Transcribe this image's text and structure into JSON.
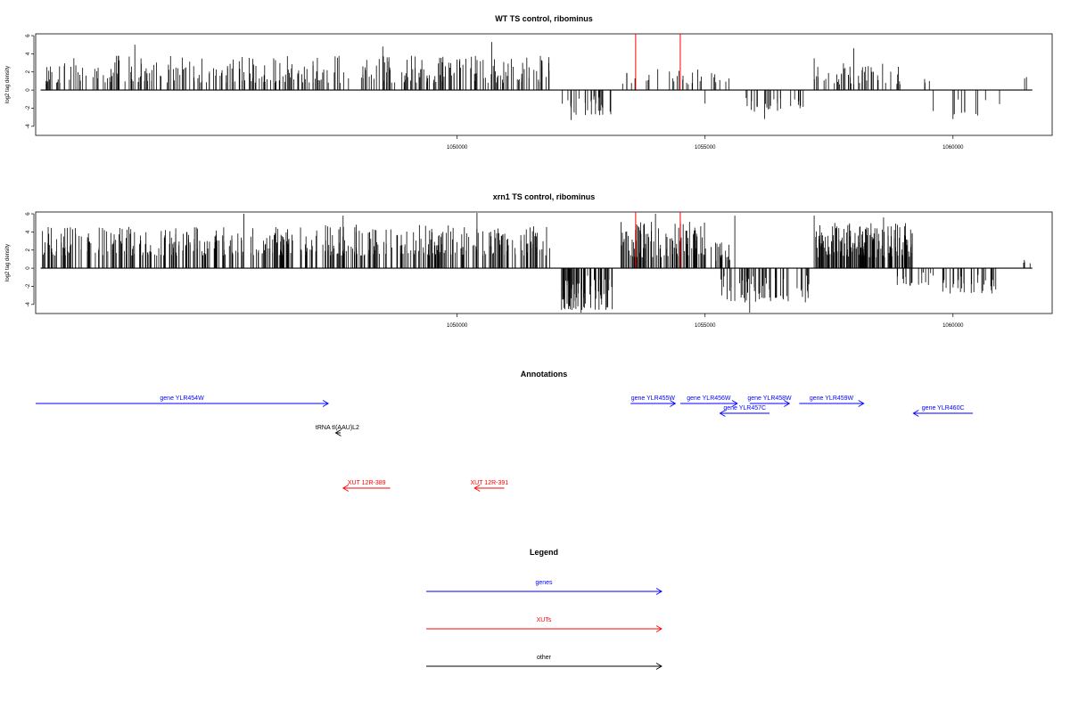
{
  "chart_data": [
    {
      "type": "bar",
      "title": "WT TS control, ribominus",
      "ylabel": "log2 tag density",
      "xlim": [
        1041500,
        1062000
      ],
      "ylim": [
        -5,
        6.2
      ],
      "xticks": [
        1050000,
        1055000,
        1060000
      ],
      "yticks": [
        -4,
        -2,
        0,
        2,
        4,
        6
      ],
      "ytick_labels": [
        "-4",
        "-2",
        "0",
        "2",
        "4",
        "6"
      ],
      "highlight_color": "#ff0000",
      "bar_color": "#000000",
      "seed": 11,
      "segments": [
        {
          "x0": 1041600,
          "x1": 1047200,
          "n": 160,
          "min": 0.8,
          "max": 3.8,
          "neg": false
        },
        {
          "x0": 1047200,
          "x1": 1051900,
          "n": 140,
          "min": 0.8,
          "max": 3.8,
          "neg": false
        },
        {
          "x0": 1052100,
          "x1": 1053100,
          "n": 30,
          "min": -2.8,
          "max": -0.6,
          "neg": true
        },
        {
          "x0": 1053300,
          "x1": 1054900,
          "n": 22,
          "min": 0.6,
          "max": 2.5,
          "neg": false
        },
        {
          "x0": 1054900,
          "x1": 1055500,
          "n": 8,
          "min": 0.8,
          "max": 2.0,
          "neg": false
        },
        {
          "x0": 1055700,
          "x1": 1057100,
          "n": 26,
          "min": -2.5,
          "max": -0.6,
          "neg": true
        },
        {
          "x0": 1057200,
          "x1": 1059000,
          "n": 45,
          "min": 0.6,
          "max": 3.0,
          "neg": false
        },
        {
          "x0": 1059400,
          "x1": 1059600,
          "n": 3,
          "min": 0.8,
          "max": 2.2,
          "neg": false
        },
        {
          "x0": 1059600,
          "x1": 1061000,
          "n": 10,
          "min": -2.8,
          "max": -0.8,
          "neg": true
        },
        {
          "x0": 1061400,
          "x1": 1061500,
          "n": 2,
          "min": 1.2,
          "max": 1.6,
          "neg": false
        }
      ],
      "peaks": [
        {
          "x": 1043500,
          "y": 5.0
        },
        {
          "x": 1046300,
          "y": 3.5
        },
        {
          "x": 1048500,
          "y": 4.8
        },
        {
          "x": 1050700,
          "y": 5.3
        },
        {
          "x": 1052300,
          "y": -3.3
        },
        {
          "x": 1055000,
          "y": -1.5
        },
        {
          "x": 1056200,
          "y": -3.2
        },
        {
          "x": 1057200,
          "y": 3.5
        },
        {
          "x": 1058000,
          "y": 4.6
        },
        {
          "x": 1060000,
          "y": -3.2
        },
        {
          "x": 1060500,
          "y": -2.8
        }
      ],
      "highlights": [
        {
          "x": 1053600,
          "y": 6.2
        },
        {
          "x": 1054500,
          "y": 6.2
        }
      ]
    },
    {
      "type": "bar",
      "title": "xrn1 TS control, ribominus",
      "ylabel": "log2 tag density",
      "xlim": [
        1041500,
        1062000
      ],
      "ylim": [
        -5,
        6.2
      ],
      "xticks": [
        1050000,
        1055000,
        1060000
      ],
      "yticks": [
        -4,
        -2,
        0,
        2,
        4,
        6
      ],
      "ytick_labels": [
        "-4",
        "-2",
        "0",
        "2",
        "4",
        "6"
      ],
      "highlight_color": "#ff0000",
      "bar_color": "#000000",
      "seed": 29,
      "segments": [
        {
          "x0": 1041600,
          "x1": 1046800,
          "n": 230,
          "min": 1.4,
          "max": 4.6,
          "neg": false
        },
        {
          "x0": 1046800,
          "x1": 1051900,
          "n": 230,
          "min": 1.4,
          "max": 4.8,
          "neg": false
        },
        {
          "x0": 1052100,
          "x1": 1053200,
          "n": 75,
          "min": -4.6,
          "max": -0.8,
          "neg": true
        },
        {
          "x0": 1053300,
          "x1": 1055000,
          "n": 110,
          "min": 1.2,
          "max": 5.2,
          "neg": false
        },
        {
          "x0": 1055000,
          "x1": 1055500,
          "n": 18,
          "min": 0.8,
          "max": 3.0,
          "neg": false
        },
        {
          "x0": 1055300,
          "x1": 1057100,
          "n": 60,
          "min": -3.8,
          "max": -0.5,
          "neg": true
        },
        {
          "x0": 1057200,
          "x1": 1059200,
          "n": 180,
          "min": 1.2,
          "max": 5.0,
          "neg": false
        },
        {
          "x0": 1058800,
          "x1": 1059700,
          "n": 18,
          "min": -2.0,
          "max": -0.4,
          "neg": true
        },
        {
          "x0": 1059700,
          "x1": 1061000,
          "n": 30,
          "min": -2.8,
          "max": -0.6,
          "neg": true
        },
        {
          "x0": 1061400,
          "x1": 1061600,
          "n": 4,
          "min": 0.5,
          "max": 1.0,
          "neg": false
        }
      ],
      "peaks": [
        {
          "x": 1042200,
          "y": 4.5
        },
        {
          "x": 1045700,
          "y": 6.0
        },
        {
          "x": 1047700,
          "y": 5.8
        },
        {
          "x": 1050400,
          "y": 6.1
        },
        {
          "x": 1052500,
          "y": -4.9
        },
        {
          "x": 1053000,
          "y": -4.6
        },
        {
          "x": 1054000,
          "y": 6.0
        },
        {
          "x": 1055600,
          "y": 5.8
        },
        {
          "x": 1055500,
          "y": -2.5
        },
        {
          "x": 1055900,
          "y": -4.9
        },
        {
          "x": 1057200,
          "y": 5.8
        },
        {
          "x": 1058600,
          "y": 5.6
        }
      ],
      "highlights": [
        {
          "x": 1053600,
          "y": 6.2
        },
        {
          "x": 1054500,
          "y": 6.2
        }
      ]
    }
  ],
  "annotations": {
    "title": "Annotations",
    "features": [
      {
        "label": "gene YLR454W",
        "start": 1041500,
        "end": 1047400,
        "strand": "+",
        "color": "#0000ff",
        "row": 0
      },
      {
        "label": "gene YLR455W",
        "start": 1053500,
        "end": 1054400,
        "strand": "+",
        "color": "#0000ff",
        "row": 0
      },
      {
        "label": "gene YLR456W",
        "start": 1054500,
        "end": 1055650,
        "strand": "+",
        "color": "#0000ff",
        "row": 0
      },
      {
        "label": "gene YLR458W",
        "start": 1055900,
        "end": 1056700,
        "strand": "+",
        "color": "#0000ff",
        "row": 0
      },
      {
        "label": "gene YLR459W",
        "start": 1056900,
        "end": 1058200,
        "strand": "+",
        "color": "#0000ff",
        "row": 0
      },
      {
        "label": "gene YLR457C",
        "start": 1055300,
        "end": 1056300,
        "strand": "-",
        "color": "#0000ff",
        "row": 1
      },
      {
        "label": "gene YLR460C",
        "start": 1059200,
        "end": 1060400,
        "strand": "-",
        "color": "#0000ff",
        "row": 1
      },
      {
        "label": "tRNA tI(AAU)L2",
        "start": 1047550,
        "end": 1047650,
        "strand": "-",
        "color": "#000000",
        "row": 2
      },
      {
        "label": "XUT 12R-389",
        "start": 1047700,
        "end": 1048650,
        "strand": "-",
        "color": "#ff0000",
        "row": 3
      },
      {
        "label": "XUT 12R-391",
        "start": 1050350,
        "end": 1050950,
        "strand": "-",
        "color": "#ff0000",
        "row": 3
      }
    ]
  },
  "legend": {
    "title": "Legend",
    "items": [
      {
        "label": "genes",
        "color": "#0000ff"
      },
      {
        "label": "XUTs",
        "color": "#ff0000"
      },
      {
        "label": "other",
        "color": "#000000"
      }
    ]
  }
}
